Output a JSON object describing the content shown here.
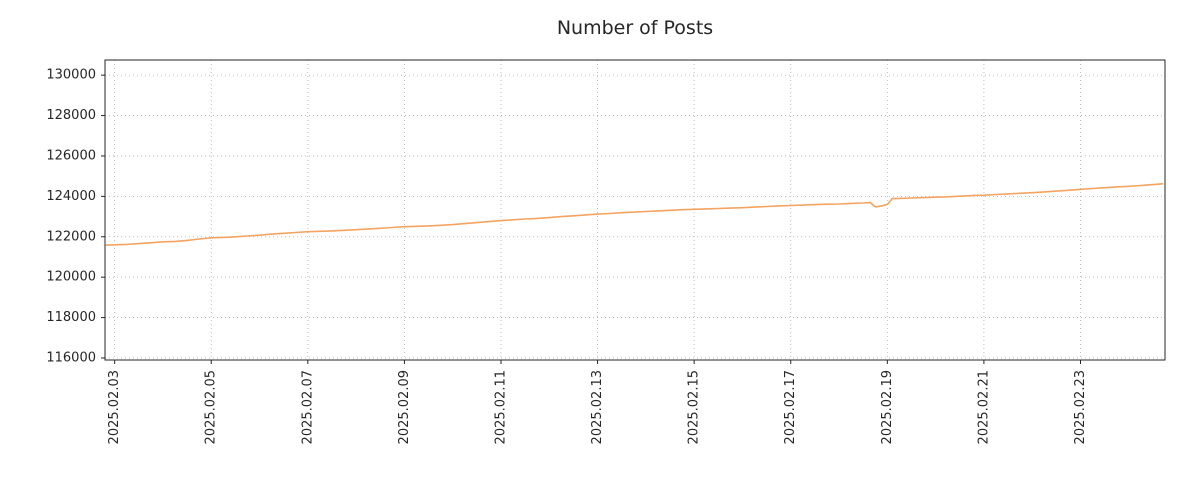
{
  "title": "Number of Posts",
  "chart_data": {
    "type": "line",
    "title": "Number of Posts",
    "xlabel": "",
    "ylabel": "",
    "grid": "dotted",
    "legend": "none",
    "xlim": [
      -0.2,
      21.75
    ],
    "ylim": [
      115900,
      130750
    ],
    "x_tick_unit": "days since 2025.02.03",
    "x_ticks": [
      {
        "x": 0,
        "label": "2025.02.03"
      },
      {
        "x": 2,
        "label": "2025.02.05"
      },
      {
        "x": 4,
        "label": "2025.02.07"
      },
      {
        "x": 6,
        "label": "2025.02.09"
      },
      {
        "x": 8,
        "label": "2025.02.11"
      },
      {
        "x": 10,
        "label": "2025.02.13"
      },
      {
        "x": 12,
        "label": "2025.02.15"
      },
      {
        "x": 14,
        "label": "2025.02.17"
      },
      {
        "x": 16,
        "label": "2025.02.19"
      },
      {
        "x": 18,
        "label": "2025.02.21"
      },
      {
        "x": 20,
        "label": "2025.02.23"
      }
    ],
    "y_ticks": [
      116000,
      118000,
      120000,
      122000,
      124000,
      126000,
      128000,
      130000
    ],
    "series": [
      {
        "name": "number-of-posts",
        "color": "#f4a460",
        "line_width": 1.6,
        "points": [
          [
            -0.17,
            121590
          ],
          [
            0,
            121600
          ],
          [
            0.25,
            121620
          ],
          [
            0.5,
            121660
          ],
          [
            0.75,
            121700
          ],
          [
            1,
            121750
          ],
          [
            1.25,
            121770
          ],
          [
            1.5,
            121820
          ],
          [
            1.75,
            121890
          ],
          [
            2,
            121950
          ],
          [
            2.25,
            121970
          ],
          [
            2.5,
            122000
          ],
          [
            2.75,
            122040
          ],
          [
            3,
            122080
          ],
          [
            3.25,
            122130
          ],
          [
            3.5,
            122170
          ],
          [
            3.75,
            122210
          ],
          [
            4,
            122250
          ],
          [
            4.25,
            122270
          ],
          [
            4.5,
            122290
          ],
          [
            4.75,
            122320
          ],
          [
            5,
            122350
          ],
          [
            5.25,
            122390
          ],
          [
            5.5,
            122420
          ],
          [
            5.75,
            122460
          ],
          [
            6,
            122500
          ],
          [
            6.25,
            122520
          ],
          [
            6.5,
            122540
          ],
          [
            6.75,
            122570
          ],
          [
            7,
            122600
          ],
          [
            7.25,
            122650
          ],
          [
            7.5,
            122700
          ],
          [
            7.75,
            122750
          ],
          [
            8,
            122800
          ],
          [
            8.25,
            122840
          ],
          [
            8.5,
            122880
          ],
          [
            8.75,
            122910
          ],
          [
            9,
            122950
          ],
          [
            9.25,
            123000
          ],
          [
            9.5,
            123040
          ],
          [
            9.75,
            123080
          ],
          [
            10,
            123120
          ],
          [
            10.25,
            123150
          ],
          [
            10.5,
            123190
          ],
          [
            10.75,
            123220
          ],
          [
            11,
            123250
          ],
          [
            11.25,
            123280
          ],
          [
            11.5,
            123310
          ],
          [
            11.75,
            123340
          ],
          [
            12,
            123360
          ],
          [
            12.25,
            123380
          ],
          [
            12.5,
            123400
          ],
          [
            12.75,
            123420
          ],
          [
            13,
            123440
          ],
          [
            13.25,
            123470
          ],
          [
            13.5,
            123500
          ],
          [
            13.75,
            123530
          ],
          [
            14,
            123550
          ],
          [
            14.25,
            123570
          ],
          [
            14.5,
            123590
          ],
          [
            14.75,
            123610
          ],
          [
            15,
            123620
          ],
          [
            15.25,
            123650
          ],
          [
            15.5,
            123670
          ],
          [
            15.65,
            123690
          ],
          [
            15.75,
            123480
          ],
          [
            15.9,
            123540
          ],
          [
            16,
            123600
          ],
          [
            16.1,
            123890
          ],
          [
            16.25,
            123900
          ],
          [
            16.5,
            123920
          ],
          [
            16.75,
            123940
          ],
          [
            17,
            123960
          ],
          [
            17.25,
            123980
          ],
          [
            17.5,
            124010
          ],
          [
            17.75,
            124040
          ],
          [
            18,
            124060
          ],
          [
            18.25,
            124090
          ],
          [
            18.5,
            124120
          ],
          [
            18.75,
            124150
          ],
          [
            19,
            124180
          ],
          [
            19.25,
            124220
          ],
          [
            19.5,
            124260
          ],
          [
            19.75,
            124300
          ],
          [
            20,
            124350
          ],
          [
            20.25,
            124390
          ],
          [
            20.5,
            124430
          ],
          [
            20.75,
            124470
          ],
          [
            21,
            124500
          ],
          [
            21.25,
            124540
          ],
          [
            21.5,
            124580
          ],
          [
            21.7,
            124620
          ]
        ]
      }
    ],
    "style": {
      "grid_color": "#b0b0b0",
      "frame_color": "#262626",
      "tick_label_color": "#262626",
      "tick_label_size": 13,
      "background": "#ffffff"
    }
  }
}
